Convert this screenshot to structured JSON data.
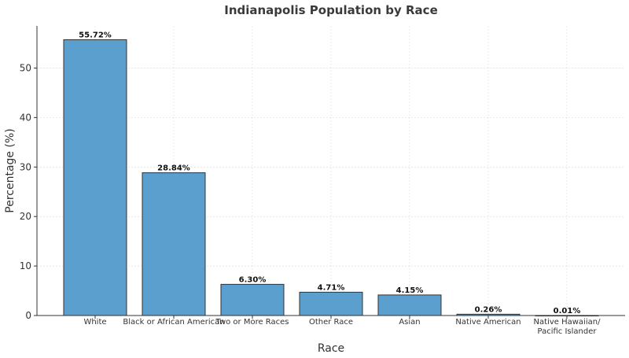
{
  "chart_data": {
    "type": "bar",
    "title": "Indianapolis Population by Race",
    "xlabel": "Race",
    "ylabel": "Percentage (%)",
    "categories": [
      "White",
      "Black or African American",
      "Two or More Races",
      "Other Race",
      "Asian",
      "Native American",
      "Native Hawaiian/\nPacific Islander"
    ],
    "values": [
      55.72,
      28.84,
      6.3,
      4.71,
      4.15,
      0.26,
      0.01
    ],
    "data_labels": [
      "55.72%",
      "28.84%",
      "6.30%",
      "4.71%",
      "4.15%",
      "0.26%",
      "0.01%"
    ],
    "yticks": [
      0,
      10,
      20,
      30,
      40,
      50
    ],
    "ylim": [
      0,
      58.5
    ],
    "grid": true,
    "colors": {
      "bar": "#5a9fce",
      "bar_edge": "#333333"
    }
  }
}
